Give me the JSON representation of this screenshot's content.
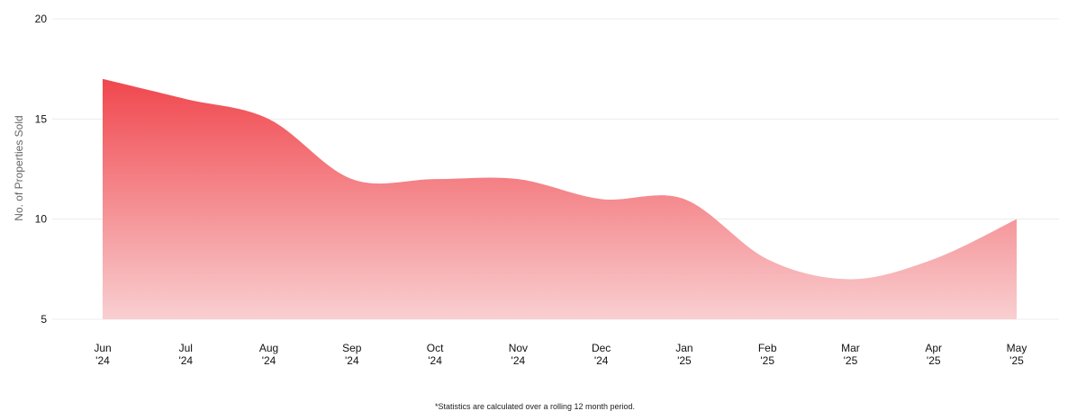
{
  "chart_data": {
    "type": "area",
    "categories": [
      [
        "Jun",
        "'24"
      ],
      [
        "Jul",
        "'24"
      ],
      [
        "Aug",
        "'24"
      ],
      [
        "Sep",
        "'24"
      ],
      [
        "Oct",
        "'24"
      ],
      [
        "Nov",
        "'24"
      ],
      [
        "Dec",
        "'24"
      ],
      [
        "Jan",
        "'25"
      ],
      [
        "Feb",
        "'25"
      ],
      [
        "Mar",
        "'25"
      ],
      [
        "Apr",
        "'25"
      ],
      [
        "May",
        "'25"
      ]
    ],
    "values": [
      17,
      16,
      15,
      12,
      12,
      12,
      11,
      11,
      8,
      7,
      8,
      10
    ],
    "ylabel": "No. of Properties Sold",
    "ylim": [
      5,
      20
    ],
    "yticks": [
      "5",
      "10",
      "15",
      "20"
    ],
    "grid": true,
    "colors": {
      "fill_top": "#f0474d",
      "fill_bottom": "#f9cfd1"
    }
  },
  "footnote": "*Statistics are calculated over a rolling 12 month period."
}
